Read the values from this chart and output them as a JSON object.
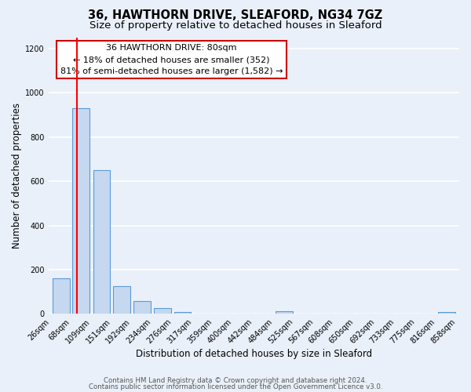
{
  "title": "36, HAWTHORN DRIVE, SLEAFORD, NG34 7GZ",
  "subtitle": "Size of property relative to detached houses in Sleaford",
  "xlabel": "Distribution of detached houses by size in Sleaford",
  "ylabel": "Number of detached properties",
  "bar_centers": [
    47,
    88,
    130,
    171,
    213,
    255,
    296,
    338,
    379,
    421,
    463,
    504,
    546,
    588,
    629,
    671,
    712,
    754,
    795,
    837
  ],
  "bar_heights": [
    160,
    930,
    650,
    125,
    60,
    28,
    10,
    0,
    0,
    0,
    0,
    12,
    0,
    0,
    0,
    0,
    0,
    0,
    0,
    10
  ],
  "bin_width": 35,
  "bar_color": "#c5d8f0",
  "bar_edge_color": "#5b9bd5",
  "red_line_x": 80,
  "ylim": [
    0,
    1250
  ],
  "yticks": [
    0,
    200,
    400,
    600,
    800,
    1000,
    1200
  ],
  "x_tick_positions": [
    26,
    68,
    109,
    151,
    192,
    234,
    276,
    317,
    359,
    400,
    442,
    484,
    525,
    567,
    608,
    650,
    692,
    733,
    775,
    816,
    858
  ],
  "x_tick_labels": [
    "26sqm",
    "68sqm",
    "109sqm",
    "151sqm",
    "192sqm",
    "234sqm",
    "276sqm",
    "317sqm",
    "359sqm",
    "400sqm",
    "442sqm",
    "484sqm",
    "525sqm",
    "567sqm",
    "608sqm",
    "650sqm",
    "692sqm",
    "733sqm",
    "775sqm",
    "816sqm",
    "858sqm"
  ],
  "annotation_line1": "36 HAWTHORN DRIVE: 80sqm",
  "annotation_line2": "← 18% of detached houses are smaller (352)",
  "annotation_line3": "81% of semi-detached houses are larger (1,582) →",
  "annotation_box_color": "#ffffff",
  "annotation_box_edge_color": "#cc0000",
  "footer1": "Contains HM Land Registry data © Crown copyright and database right 2024.",
  "footer2": "Contains public sector information licensed under the Open Government Licence v3.0.",
  "bg_color": "#eaf0fa",
  "plot_bg_color": "#eaf0fa",
  "grid_color": "#ffffff",
  "title_fontsize": 10.5,
  "subtitle_fontsize": 9.5,
  "axis_label_fontsize": 8.5,
  "tick_fontsize": 7
}
